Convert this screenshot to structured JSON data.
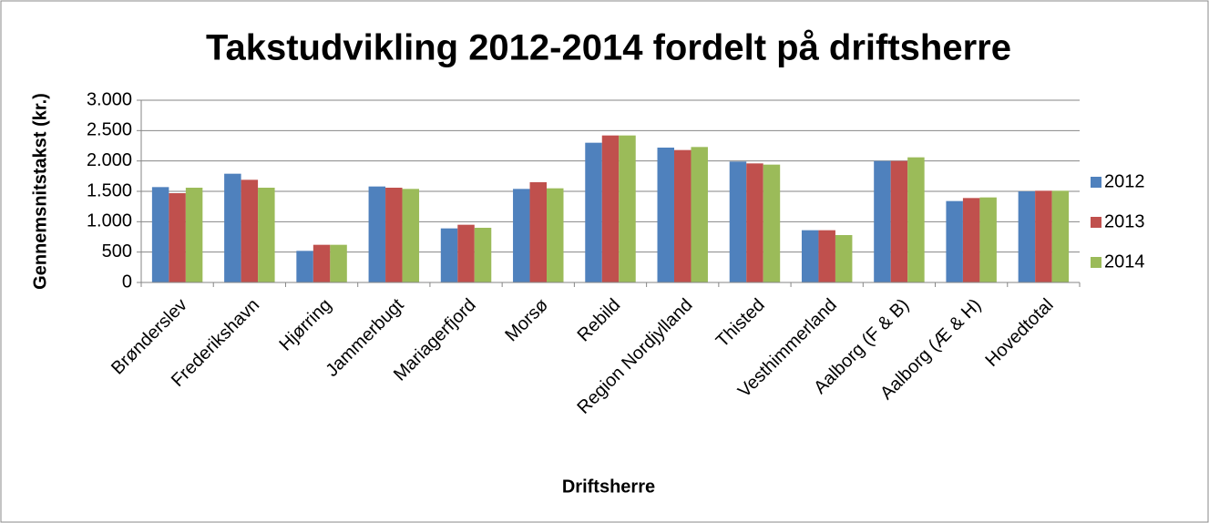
{
  "chart_data": {
    "type": "bar",
    "title": "Takstudvikling 2012-2014 fordelt på driftsherre",
    "x_label": "Driftsherre",
    "y_label": "Gennemsnitstakst (kr.)",
    "categories": [
      "Brønderslev",
      "Frederikshavn",
      "Hjørring",
      "Jammerbugt",
      "Mariagerfjord",
      "Morsø",
      "Rebild",
      "Region Nordjylland",
      "Thisted",
      "Vesthimmerland",
      "Aalborg (F & B)",
      "Aalborg (Æ & H)",
      "Hovedtotal"
    ],
    "series": [
      {
        "name": "2012",
        "color": "#4f81bd",
        "values": [
          1570,
          1790,
          520,
          1580,
          890,
          1540,
          2300,
          2220,
          1990,
          860,
          2000,
          1340,
          1500
        ]
      },
      {
        "name": "2013",
        "color": "#c0504d",
        "values": [
          1470,
          1690,
          620,
          1560,
          950,
          1650,
          2420,
          2180,
          1960,
          860,
          2000,
          1390,
          1510
        ]
      },
      {
        "name": "2014",
        "color": "#9bbb59",
        "values": [
          1560,
          1560,
          620,
          1540,
          900,
          1550,
          2420,
          2230,
          1940,
          780,
          2060,
          1400,
          1510
        ]
      }
    ],
    "ylim": [
      0,
      3000
    ],
    "yticks": [
      0,
      500,
      {
        "value": 1000,
        "label": "1.000"
      },
      {
        "value": 1500,
        "label": "1.500"
      },
      {
        "value": 2000,
        "label": "2.000"
      },
      {
        "value": 2500,
        "label": "2.500"
      },
      {
        "value": 3000,
        "label": "3.000"
      }
    ],
    "grid": true,
    "legend": "right"
  }
}
